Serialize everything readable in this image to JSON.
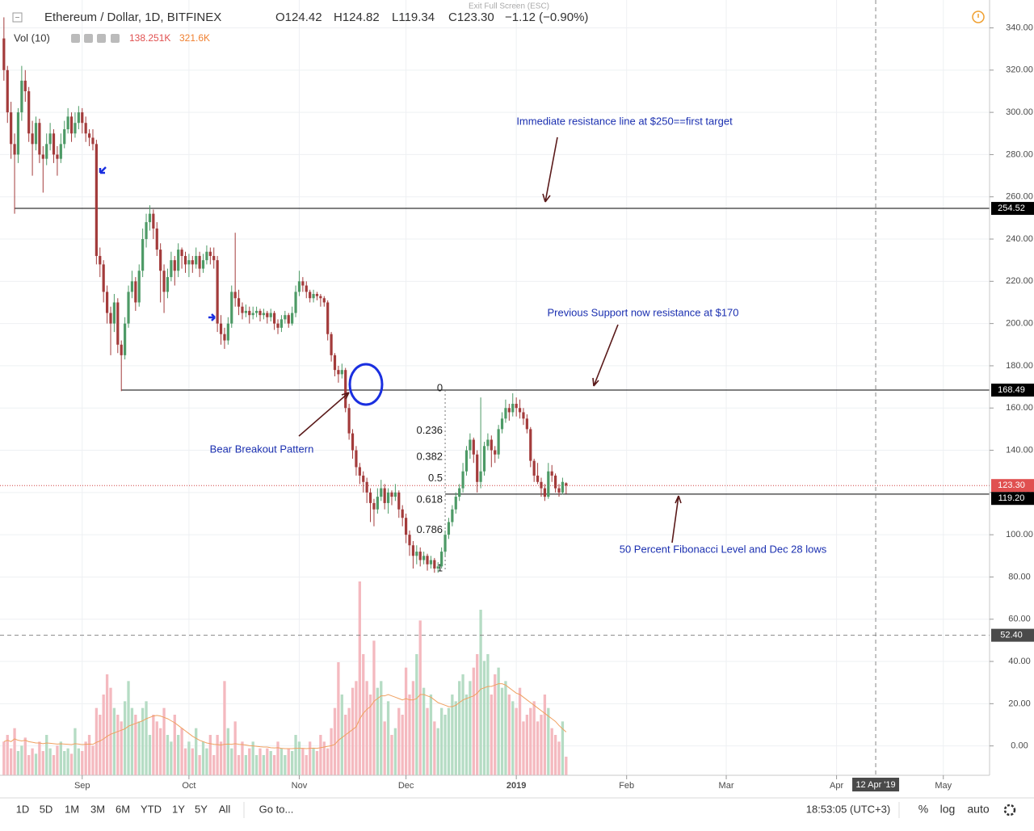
{
  "chart_data": {
    "type": "candlestick",
    "title": "Ethereum / Dollar, 1D, BITFINEX",
    "quote": [
      "O124.42",
      "H124.82",
      "L119.34",
      "C123.30",
      "−1.12 (−0.90%)"
    ],
    "exit_hint": "Exit Full Screen (ESC)",
    "up_color": "#4d9a66",
    "down_color": "#a33b3b",
    "candles": [
      [
        335,
        345,
        315,
        320
      ],
      [
        320,
        322,
        295,
        300
      ],
      [
        300,
        305,
        278,
        285
      ],
      [
        285,
        290,
        252,
        280
      ],
      [
        280,
        302,
        276,
        300
      ],
      [
        300,
        322,
        296,
        315
      ],
      [
        315,
        320,
        305,
        310
      ],
      [
        310,
        312,
        286,
        290
      ],
      [
        290,
        296,
        270,
        285
      ],
      [
        285,
        298,
        282,
        295
      ],
      [
        295,
        297,
        276,
        280
      ],
      [
        280,
        284,
        262,
        278
      ],
      [
        278,
        290,
        275,
        285
      ],
      [
        285,
        295,
        282,
        290
      ],
      [
        290,
        292,
        276,
        280
      ],
      [
        280,
        284,
        270,
        278
      ],
      [
        278,
        290,
        276,
        285
      ],
      [
        285,
        296,
        283,
        292
      ],
      [
        292,
        302,
        290,
        298
      ],
      [
        298,
        300,
        286,
        290
      ],
      [
        290,
        300,
        288,
        295
      ],
      [
        295,
        303,
        292,
        300
      ],
      [
        300,
        302,
        290,
        295
      ],
      [
        295,
        298,
        286,
        290
      ],
      [
        290,
        292,
        284,
        288
      ],
      [
        288,
        292,
        282,
        285
      ],
      [
        285,
        287,
        228,
        232
      ],
      [
        232,
        236,
        222,
        228
      ],
      [
        228,
        230,
        210,
        215
      ],
      [
        215,
        218,
        200,
        205
      ],
      [
        205,
        208,
        185,
        200
      ],
      [
        200,
        214,
        196,
        210
      ],
      [
        210,
        212,
        186,
        190
      ],
      [
        190,
        192,
        168,
        185
      ],
      [
        185,
        203,
        183,
        200
      ],
      [
        200,
        218,
        198,
        215
      ],
      [
        215,
        225,
        212,
        220
      ],
      [
        220,
        222,
        206,
        210
      ],
      [
        210,
        228,
        208,
        225
      ],
      [
        225,
        245,
        222,
        240
      ],
      [
        240,
        252,
        236,
        248
      ],
      [
        248,
        256,
        244,
        252
      ],
      [
        252,
        254,
        240,
        245
      ],
      [
        245,
        248,
        232,
        235
      ],
      [
        235,
        238,
        210,
        225
      ],
      [
        225,
        228,
        205,
        215
      ],
      [
        215,
        226,
        212,
        222
      ],
      [
        222,
        234,
        220,
        230
      ],
      [
        230,
        232,
        218,
        225
      ],
      [
        225,
        238,
        222,
        235
      ],
      [
        235,
        236,
        226,
        232
      ],
      [
        232,
        234,
        224,
        228
      ],
      [
        228,
        233,
        222,
        230
      ],
      [
        230,
        232,
        224,
        228
      ],
      [
        228,
        236,
        226,
        232
      ],
      [
        232,
        234,
        222,
        226
      ],
      [
        226,
        233,
        224,
        230
      ],
      [
        230,
        237,
        228,
        234
      ],
      [
        234,
        236,
        228,
        232
      ],
      [
        232,
        236,
        226,
        230
      ],
      [
        230,
        232,
        196,
        200
      ],
      [
        200,
        204,
        190,
        195
      ],
      [
        195,
        198,
        188,
        192
      ],
      [
        192,
        203,
        190,
        200
      ],
      [
        200,
        218,
        198,
        215
      ],
      [
        215,
        243,
        208,
        212
      ],
      [
        212,
        216,
        204,
        208
      ],
      [
        208,
        210,
        202,
        205
      ],
      [
        205,
        209,
        203,
        206
      ],
      [
        206,
        208,
        200,
        204
      ],
      [
        204,
        208,
        202,
        205
      ],
      [
        205,
        208,
        203,
        206
      ],
      [
        206,
        207,
        201,
        204
      ],
      [
        204,
        207,
        202,
        205
      ],
      [
        205,
        206,
        200,
        203
      ],
      [
        203,
        207,
        201,
        205
      ],
      [
        205,
        206,
        197,
        200
      ],
      [
        200,
        202,
        195,
        198
      ],
      [
        198,
        204,
        196,
        202
      ],
      [
        202,
        206,
        200,
        204
      ],
      [
        204,
        205,
        198,
        200
      ],
      [
        200,
        208,
        199,
        205
      ],
      [
        205,
        218,
        203,
        215
      ],
      [
        215,
        225,
        213,
        220
      ],
      [
        220,
        222,
        215,
        218
      ],
      [
        218,
        220,
        212,
        215
      ],
      [
        215,
        216,
        210,
        212
      ],
      [
        212,
        216,
        210,
        214
      ],
      [
        214,
        215,
        211,
        213
      ],
      [
        213,
        214,
        208,
        212
      ],
      [
        212,
        213,
        208,
        210
      ],
      [
        210,
        211,
        192,
        195
      ],
      [
        195,
        196,
        182,
        185
      ],
      [
        185,
        186,
        175,
        178
      ],
      [
        178,
        180,
        172,
        176
      ],
      [
        176,
        181,
        174,
        178
      ],
      [
        178,
        179,
        158,
        160
      ],
      [
        160,
        162,
        145,
        148
      ],
      [
        148,
        150,
        136,
        140
      ],
      [
        140,
        142,
        128,
        132
      ],
      [
        132,
        134,
        124,
        128
      ],
      [
        128,
        130,
        120,
        125
      ],
      [
        125,
        127,
        115,
        120
      ],
      [
        120,
        122,
        106,
        115
      ],
      [
        115,
        117,
        104,
        112
      ],
      [
        112,
        122,
        110,
        118
      ],
      [
        118,
        126,
        116,
        122
      ],
      [
        122,
        124,
        112,
        115
      ],
      [
        115,
        122,
        110,
        120
      ],
      [
        120,
        121,
        114,
        118
      ],
      [
        118,
        124,
        116,
        120
      ],
      [
        120,
        121,
        108,
        112
      ],
      [
        112,
        114,
        104,
        108
      ],
      [
        108,
        110,
        96,
        100
      ],
      [
        100,
        102,
        90,
        95
      ],
      [
        95,
        97,
        84,
        90
      ],
      [
        90,
        95,
        86,
        92
      ],
      [
        92,
        94,
        85,
        88
      ],
      [
        88,
        92,
        86,
        90
      ],
      [
        90,
        91,
        83,
        86
      ],
      [
        86,
        90,
        84,
        88
      ],
      [
        88,
        89,
        82,
        84
      ],
      [
        84,
        87,
        82,
        85
      ],
      [
        85,
        94,
        84,
        92
      ],
      [
        92,
        102,
        90,
        100
      ],
      [
        100,
        108,
        98,
        106
      ],
      [
        106,
        114,
        104,
        112
      ],
      [
        112,
        120,
        110,
        118
      ],
      [
        118,
        124,
        116,
        122
      ],
      [
        122,
        134,
        120,
        130
      ],
      [
        130,
        142,
        128,
        140
      ],
      [
        140,
        148,
        136,
        145
      ],
      [
        145,
        146,
        134,
        138
      ],
      [
        138,
        140,
        120,
        125
      ],
      [
        125,
        165,
        122,
        130
      ],
      [
        130,
        144,
        128,
        142
      ],
      [
        142,
        148,
        140,
        145
      ],
      [
        145,
        147,
        132,
        140
      ],
      [
        140,
        142,
        134,
        138
      ],
      [
        138,
        152,
        136,
        150
      ],
      [
        150,
        158,
        148,
        155
      ],
      [
        155,
        164,
        153,
        160
      ],
      [
        160,
        162,
        154,
        158
      ],
      [
        158,
        167,
        156,
        162
      ],
      [
        162,
        165,
        156,
        160
      ],
      [
        160,
        164,
        155,
        158
      ],
      [
        158,
        160,
        152,
        155
      ],
      [
        155,
        157,
        148,
        150
      ],
      [
        150,
        151,
        132,
        135
      ],
      [
        135,
        136,
        125,
        128
      ],
      [
        128,
        134,
        124,
        125
      ],
      [
        125,
        127,
        118,
        122
      ],
      [
        122,
        124,
        116,
        118
      ],
      [
        118,
        134,
        117,
        130
      ],
      [
        130,
        133,
        125,
        128
      ],
      [
        128,
        129,
        120,
        122
      ],
      [
        122,
        124,
        118,
        120
      ],
      [
        120,
        127,
        119,
        125
      ],
      [
        124.42,
        124.82,
        119.34,
        123.3
      ]
    ],
    "volume": {
      "name": "Vol (10)",
      "legend_values": [
        "138.251K",
        "321.6K"
      ],
      "up_color": "#b5dcc4",
      "down_color": "#f4b9bf",
      "ma_color": "#f0a060",
      "lim": [
        0,
        1500
      ],
      "values": [
        250,
        300,
        200,
        350,
        180,
        220,
        280,
        150,
        200,
        160,
        250,
        180,
        300,
        200,
        150,
        220,
        250,
        180,
        200,
        160,
        350,
        200,
        180,
        250,
        300,
        220,
        500,
        450,
        600,
        750,
        650,
        500,
        450,
        400,
        550,
        700,
        500,
        450,
        400,
        500,
        550,
        300,
        450,
        400,
        350,
        500,
        300,
        250,
        450,
        300,
        350,
        200,
        250,
        200,
        350,
        150,
        250,
        200,
        300,
        150,
        300,
        250,
        700,
        350,
        200,
        400,
        150,
        250,
        150,
        200,
        250,
        150,
        200,
        150,
        200,
        180,
        150,
        250,
        200,
        150,
        200,
        180,
        300,
        250,
        200,
        150,
        250,
        200,
        180,
        300,
        250,
        200,
        350,
        500,
        840,
        600,
        450,
        500,
        650,
        700,
        1440,
        900,
        700,
        600,
        1000,
        650,
        700,
        400,
        550,
        300,
        350,
        500,
        450,
        800,
        600,
        700,
        900,
        1150,
        650,
        500,
        600,
        400,
        350,
        500,
        450,
        500,
        600,
        550,
        700,
        750,
        600,
        700,
        800,
        900,
        1230,
        850,
        900,
        600,
        750,
        800,
        650,
        700,
        600,
        550,
        500,
        650,
        400,
        450,
        500,
        550,
        400,
        450,
        600,
        500,
        350,
        300,
        250,
        400,
        138.251
      ],
      "ma": [
        250,
        260,
        250,
        270,
        260,
        255,
        260,
        250,
        245,
        240,
        240,
        235,
        240,
        238,
        235,
        232,
        234,
        232,
        230,
        228,
        235,
        232,
        228,
        230,
        232,
        230,
        245,
        255,
        270,
        290,
        305,
        315,
        325,
        335,
        345,
        365,
        375,
        385,
        395,
        405,
        420,
        430,
        440,
        445,
        440,
        430,
        420,
        405,
        390,
        370,
        350,
        330,
        310,
        290,
        275,
        260,
        250,
        240,
        235,
        230,
        228,
        225,
        230,
        232,
        230,
        235,
        230,
        228,
        225,
        220,
        218,
        215,
        212,
        210,
        210,
        205,
        203,
        205,
        200,
        198,
        198,
        198,
        200,
        200,
        200,
        198,
        200,
        202,
        200,
        205,
        210,
        215,
        220,
        230,
        260,
        280,
        300,
        320,
        340,
        360,
        420,
        460,
        490,
        510,
        550,
        570,
        590,
        590,
        600,
        590,
        580,
        570,
        560,
        570,
        560,
        560,
        570,
        600,
        600,
        590,
        580,
        560,
        540,
        530,
        520,
        510,
        510,
        520,
        540,
        560,
        570,
        580,
        590,
        610,
        640,
        650,
        660,
        660,
        670,
        680,
        680,
        670,
        650,
        630,
        610,
        600,
        580,
        560,
        540,
        520,
        500,
        480,
        460,
        440,
        420,
        400,
        370,
        345,
        321.6
      ]
    },
    "ylim": [
      -13.9,
      353.2
    ],
    "yticks": [
      {
        "value": 0,
        "label": "0.00"
      },
      {
        "value": 20,
        "label": "20.00"
      },
      {
        "value": 40,
        "label": "40.00"
      },
      {
        "value": 60,
        "label": "60.00"
      },
      {
        "value": 80,
        "label": "80.00"
      },
      {
        "value": 100,
        "label": "100.00"
      },
      {
        "value": 120,
        "label": "120.00"
      },
      {
        "value": 140,
        "label": "140.00"
      },
      {
        "value": 160,
        "label": "160.00"
      },
      {
        "value": 180,
        "label": "180.00"
      },
      {
        "value": 200,
        "label": "200.00"
      },
      {
        "value": 220,
        "label": "220.00"
      },
      {
        "value": 240,
        "label": "240.00"
      },
      {
        "value": 260,
        "label": "260.00"
      },
      {
        "value": 280,
        "label": "280.00"
      },
      {
        "value": 300,
        "label": "300.00"
      },
      {
        "value": 320,
        "label": "320.00"
      },
      {
        "value": 340,
        "label": "340.00"
      }
    ],
    "xlim": [
      -1.1,
      277
    ],
    "xticks": [
      {
        "value": 22,
        "label": "Sep"
      },
      {
        "value": 52,
        "label": "Oct"
      },
      {
        "value": 83,
        "label": "Nov"
      },
      {
        "value": 113,
        "label": "Dec"
      },
      {
        "value": 144,
        "label": "2019"
      },
      {
        "value": 175,
        "label": "Feb"
      },
      {
        "value": 203,
        "label": "Mar"
      },
      {
        "value": 234,
        "label": "Apr"
      },
      {
        "value": 264,
        "label": "May"
      }
    ],
    "grid": true,
    "levels": [
      {
        "value": 254.52,
        "label": "254.52",
        "from": 3,
        "style": "solid",
        "color": "#000000",
        "tag": "#000000"
      },
      {
        "value": 168.49,
        "label": "168.49",
        "from": 33,
        "style": "solid",
        "color": "#000000",
        "tag": "#000000"
      },
      {
        "value": 123.3,
        "label": "123.30",
        "from": -1.1,
        "style": "dotted",
        "color": "#d04040",
        "tag": "#e05050"
      },
      {
        "value": 119.2,
        "label": "119.20",
        "from": 124,
        "style": "solid",
        "color": "#000000",
        "tag": "#000000"
      },
      {
        "value": 52.4,
        "label": "52.40",
        "from": -1.1,
        "style": "dashed",
        "color": "#888888",
        "tag": "#4a4a4a"
      }
    ],
    "crosshair_x": {
      "value": 245,
      "label": "12 Apr '19"
    },
    "fib": {
      "high": 168.49,
      "low": 83.2,
      "from": 124,
      "levels": [
        0,
        0.236,
        0.382,
        0.5,
        0.618,
        0.786,
        1
      ]
    },
    "annotations": [
      "Immediate resistance line at $250==first target",
      "Previous Support now resistance at $170",
      "Bear Breakout Pattern",
      "50 Percent Fibonacci Level and Dec 28 lows"
    ]
  },
  "toolbar": {
    "ranges": [
      "1D",
      "5D",
      "1M",
      "3M",
      "6M",
      "YTD",
      "1Y",
      "5Y",
      "All"
    ],
    "goto": "Go to...",
    "clock": "18:53:05 (UTC+3)",
    "options": [
      "%",
      "log",
      "auto"
    ]
  }
}
